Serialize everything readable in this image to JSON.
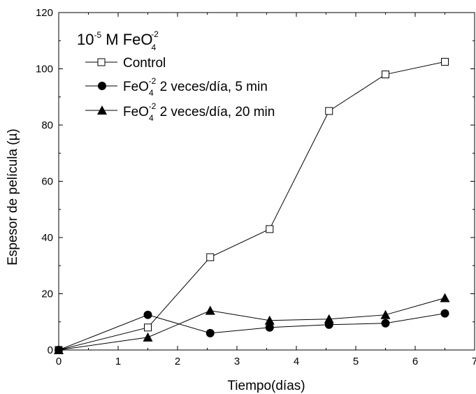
{
  "chart_data": {
    "type": "line",
    "xlabel": "Tiempo(días)",
    "ylabel": "Espesor de película (µ)",
    "xlim": [
      0,
      7
    ],
    "ylim": [
      0,
      120
    ],
    "xticks": [
      0,
      1,
      2,
      3,
      4,
      5,
      6,
      7
    ],
    "yticks": [
      0,
      20,
      40,
      60,
      80,
      100,
      120
    ],
    "grid": false,
    "legend_position": "top-left",
    "annotation": {
      "prefix": "10",
      "exponent": "-5",
      "middle": " M FeO",
      "subscript": "4",
      "superscript": "-2"
    },
    "series": [
      {
        "name": "Control",
        "marker": "open-square",
        "x": [
          0,
          1.5,
          2.55,
          3.55,
          4.55,
          5.5,
          6.5
        ],
        "values": [
          0,
          8,
          33,
          43,
          85,
          98,
          102.5
        ]
      },
      {
        "name": "FeO4-2 2 veces/día, 5 min",
        "label_parts": {
          "base": "FeO",
          "sub": "4",
          "sup": "-2",
          "rest": " 2 veces/día, 5 min"
        },
        "marker": "filled-circle",
        "x": [
          0,
          1.5,
          2.55,
          3.55,
          4.55,
          5.5,
          6.5
        ],
        "values": [
          0,
          12.5,
          6,
          8,
          9,
          9.5,
          13
        ]
      },
      {
        "name": "FeO4-2 2 veces/día, 20 min",
        "label_parts": {
          "base": "FeO",
          "sub": "4",
          "sup": "-2",
          "rest": " 2 veces/día, 20 min"
        },
        "marker": "filled-triangle",
        "x": [
          0,
          1.5,
          2.55,
          3.55,
          4.55,
          5.5,
          6.5
        ],
        "values": [
          0,
          4.5,
          14,
          10.5,
          11,
          12.5,
          18.5
        ]
      }
    ]
  }
}
